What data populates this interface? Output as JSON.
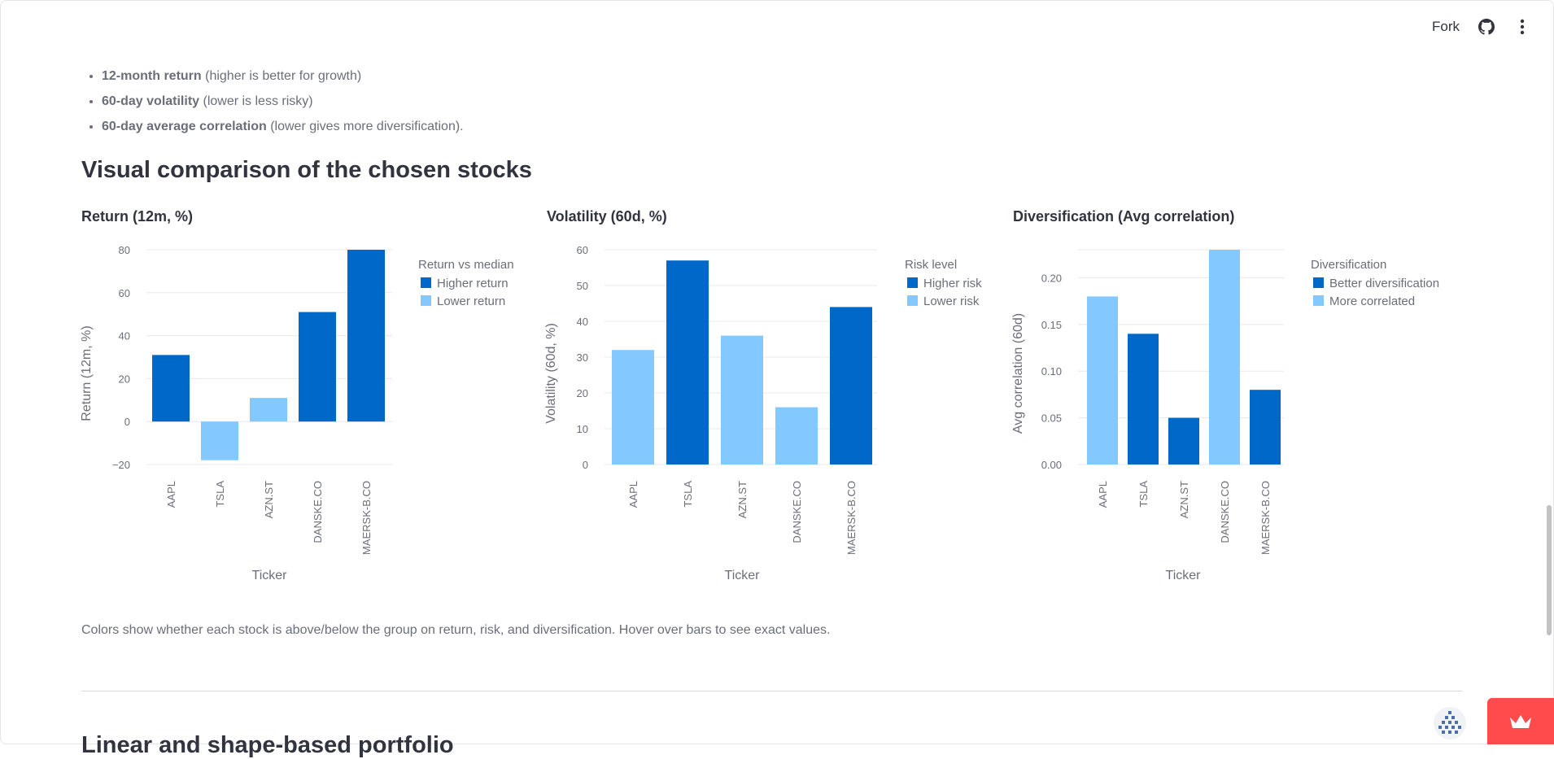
{
  "toolbar": {
    "fork_label": "Fork",
    "icons": [
      "github-icon",
      "more-vertical-icon"
    ]
  },
  "metrics_list": [
    {
      "bold": "12-month return",
      "note": " (higher is better for growth)"
    },
    {
      "bold": "60-day volatility",
      "note": " (lower is less risky)"
    },
    {
      "bold": "60-day average correlation",
      "note": " (lower gives more diversification)."
    }
  ],
  "section_heading": "Visual comparison of the chosen stocks",
  "caption": "Colors show whether each stock is above/below the group on return, risk, and diversification. Hover over bars to see exact values.",
  "next_section_heading": "Linear and shape-based portfolio",
  "colors": {
    "higher": "#0068c9",
    "lower": "#83c9ff",
    "grid": "#e8e8ec",
    "badge": "#ff4b4b"
  },
  "chart_data": [
    {
      "type": "bar",
      "title": "Return (12m, %)",
      "xlabel": "Ticker",
      "ylabel": "Return (12m, %)",
      "categories": [
        "AAPL",
        "TSLA",
        "AZN.ST",
        "DANSKE.CO",
        "MAERSK-B.CO"
      ],
      "values": [
        31,
        -18,
        11,
        51,
        80
      ],
      "groups": [
        "Higher return",
        "Lower return",
        "Lower return",
        "Higher return",
        "Higher return"
      ],
      "ylim": [
        -20,
        80
      ],
      "yticks": [
        -20,
        0,
        20,
        40,
        60,
        80
      ],
      "ytick_labels": [
        "−20",
        "0",
        "20",
        "40",
        "60",
        "80"
      ],
      "legend": {
        "title": "Return vs median",
        "entries": [
          "Higher return",
          "Lower return"
        ],
        "placement": "right"
      },
      "grid": true
    },
    {
      "type": "bar",
      "title": "Volatility (60d, %)",
      "xlabel": "Ticker",
      "ylabel": "Volatility (60d, %)",
      "categories": [
        "AAPL",
        "TSLA",
        "AZN.ST",
        "DANSKE.CO",
        "MAERSK-B.CO"
      ],
      "values": [
        32,
        57,
        36,
        16,
        44
      ],
      "groups": [
        "Lower risk",
        "Higher risk",
        "Lower risk",
        "Lower risk",
        "Higher risk"
      ],
      "ylim": [
        0,
        60
      ],
      "yticks": [
        0,
        10,
        20,
        30,
        40,
        50,
        60
      ],
      "ytick_labels": [
        "0",
        "10",
        "20",
        "30",
        "40",
        "50",
        "60"
      ],
      "legend": {
        "title": "Risk level",
        "entries": [
          "Higher risk",
          "Lower risk"
        ],
        "placement": "right"
      },
      "grid": true
    },
    {
      "type": "bar",
      "title": "Diversification (Avg correlation)",
      "xlabel": "Ticker",
      "ylabel": "Avg correlation (60d)",
      "categories": [
        "AAPL",
        "TSLA",
        "AZN.ST",
        "DANSKE.CO",
        "MAERSK-B.CO"
      ],
      "values": [
        0.18,
        0.14,
        0.05,
        0.23,
        0.08
      ],
      "groups": [
        "More correlated",
        "Better diversification",
        "Better diversification",
        "More correlated",
        "Better diversification"
      ],
      "ylim": [
        0,
        0.23
      ],
      "yticks": [
        0,
        0.05,
        0.1,
        0.15,
        0.2
      ],
      "ytick_labels": [
        "0.00",
        "0.05",
        "0.10",
        "0.15",
        "0.20"
      ],
      "legend": {
        "title": "Diversification",
        "entries": [
          "Better diversification",
          "More correlated"
        ],
        "placement": "right"
      },
      "grid": true
    }
  ]
}
